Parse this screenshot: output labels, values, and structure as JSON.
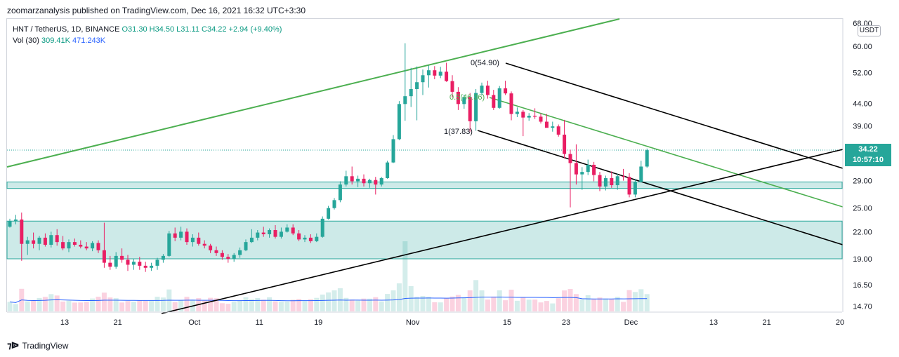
{
  "header": {
    "published": "zoomarzanalysis published on TradingView.com, Dec 16, 2021 16:32 UTC+3:30"
  },
  "legend": {
    "symbol": "HNT / TetherUS, 1D, BINANCE",
    "ohlc": "O31.30  H34.50  L31.11  C34.22  +2.94 (+9.40%)",
    "vol_label": "Vol (30)",
    "vol_value": "309.41K",
    "vol_ma": "471.243K"
  },
  "unit": "USDT",
  "last_price": {
    "price": "34.22",
    "countdown": "10:57:10"
  },
  "footer": {
    "brand": "TradingView"
  },
  "colors": {
    "up": "#26a69a",
    "down": "#e91e63",
    "channel": "#4caf50",
    "trendline": "#000000",
    "zone": "#b2dfdb",
    "vol_ma": "#2962ff"
  },
  "chart_data": {
    "type": "candlestick",
    "symbol": "HNT / TetherUS",
    "interval": "1D",
    "y_scale": "log",
    "y_ticks": [
      "68.00",
      "60.00",
      "52.00",
      "44.00",
      "39.00",
      "34.22",
      "29.00",
      "25.00",
      "22.00",
      "19.00",
      "16.50",
      "14.70"
    ],
    "x_ticks": [
      "13",
      "21",
      "Oct",
      "11",
      "19",
      "Nov",
      "15",
      "23",
      "Dec",
      "13",
      "21",
      "20"
    ],
    "fib_labels": [
      "0(54.90)",
      "0.5(46.36)",
      "1(37.83)"
    ],
    "ohlc": [
      [
        22.6,
        23.6,
        22.5,
        23.3
      ],
      [
        23.3,
        24.1,
        22.9,
        23.5
      ],
      [
        23.5,
        24.4,
        18.8,
        20.6
      ],
      [
        20.6,
        21.4,
        19.4,
        21.0
      ],
      [
        21.0,
        21.9,
        20.1,
        20.6
      ],
      [
        20.6,
        21.5,
        19.9,
        21.3
      ],
      [
        21.3,
        21.8,
        20.3,
        20.5
      ],
      [
        20.5,
        22.0,
        20.2,
        21.6
      ],
      [
        21.6,
        22.3,
        20.4,
        20.8
      ],
      [
        20.8,
        21.5,
        19.9,
        20.1
      ],
      [
        20.1,
        21.1,
        19.7,
        20.8
      ],
      [
        20.8,
        21.2,
        20.3,
        20.5
      ],
      [
        20.5,
        21.0,
        20.1,
        20.3
      ],
      [
        20.3,
        20.8,
        19.9,
        20.1
      ],
      [
        20.1,
        20.9,
        19.8,
        20.7
      ],
      [
        20.7,
        21.0,
        19.6,
        19.9
      ],
      [
        19.9,
        23.1,
        18.1,
        18.6
      ],
      [
        18.6,
        19.3,
        17.9,
        18.2
      ],
      [
        18.2,
        19.7,
        18.0,
        19.3
      ],
      [
        19.3,
        20.1,
        18.6,
        18.9
      ],
      [
        18.9,
        19.4,
        17.8,
        18.4
      ],
      [
        18.4,
        19.0,
        17.9,
        18.7
      ],
      [
        18.7,
        19.2,
        17.9,
        18.3
      ],
      [
        18.3,
        18.7,
        17.7,
        18.1
      ],
      [
        18.1,
        18.6,
        17.8,
        18.3
      ],
      [
        18.3,
        19.1,
        17.9,
        18.9
      ],
      [
        18.9,
        19.5,
        18.6,
        19.3
      ],
      [
        19.3,
        22.1,
        19.2,
        21.8
      ],
      [
        21.8,
        22.5,
        20.9,
        21.3
      ],
      [
        21.3,
        22.6,
        21.0,
        22.0
      ],
      [
        22.0,
        22.4,
        20.5,
        20.8
      ],
      [
        20.8,
        21.7,
        20.3,
        21.3
      ],
      [
        21.3,
        21.9,
        20.4,
        20.6
      ],
      [
        20.6,
        21.0,
        20.1,
        20.4
      ],
      [
        20.4,
        20.6,
        19.6,
        19.9
      ],
      [
        19.9,
        20.3,
        19.3,
        19.6
      ],
      [
        19.6,
        19.9,
        18.9,
        19.2
      ],
      [
        19.2,
        19.5,
        18.6,
        19.0
      ],
      [
        19.0,
        19.6,
        18.7,
        19.4
      ],
      [
        19.4,
        20.2,
        19.1,
        19.9
      ],
      [
        19.9,
        21.1,
        19.8,
        20.8
      ],
      [
        20.8,
        22.3,
        20.7,
        21.3
      ],
      [
        21.3,
        22.2,
        21.0,
        21.9
      ],
      [
        21.9,
        22.6,
        21.4,
        21.7
      ],
      [
        21.7,
        22.4,
        21.3,
        22.2
      ],
      [
        22.2,
        22.8,
        21.2,
        21.4
      ],
      [
        21.4,
        22.5,
        21.2,
        22.0
      ],
      [
        22.0,
        22.9,
        21.9,
        22.5
      ],
      [
        22.5,
        22.9,
        21.6,
        21.8
      ],
      [
        21.8,
        22.2,
        20.9,
        21.1
      ],
      [
        21.1,
        21.6,
        20.8,
        21.3
      ],
      [
        21.3,
        21.7,
        20.7,
        20.9
      ],
      [
        20.9,
        21.8,
        20.8,
        21.4
      ],
      [
        21.4,
        23.9,
        21.3,
        23.6
      ],
      [
        23.6,
        25.3,
        23.5,
        25.0
      ],
      [
        25.0,
        26.4,
        24.8,
        26.1
      ],
      [
        26.1,
        28.9,
        25.8,
        28.4
      ],
      [
        28.4,
        30.6,
        28.1,
        29.7
      ],
      [
        29.7,
        31.3,
        28.4,
        28.9
      ],
      [
        28.9,
        29.8,
        28.0,
        29.3
      ],
      [
        29.3,
        30.0,
        28.1,
        28.6
      ],
      [
        28.6,
        29.3,
        27.9,
        29.1
      ],
      [
        29.1,
        29.6,
        26.9,
        28.4
      ],
      [
        28.4,
        29.6,
        28.1,
        29.4
      ],
      [
        29.4,
        32.3,
        29.3,
        32.0
      ],
      [
        32.0,
        37.1,
        31.9,
        36.3
      ],
      [
        36.3,
        44.6,
        36.1,
        43.9
      ],
      [
        43.9,
        61.0,
        40.1,
        45.8
      ],
      [
        45.8,
        53.4,
        43.2,
        47.6
      ],
      [
        47.6,
        53.8,
        40.2,
        49.4
      ],
      [
        49.4,
        52.9,
        46.1,
        51.3
      ],
      [
        51.3,
        54.1,
        48.0,
        52.7
      ],
      [
        52.7,
        53.9,
        50.2,
        51.2
      ],
      [
        51.2,
        53.7,
        50.5,
        52.3
      ],
      [
        52.3,
        54.9,
        49.5,
        49.7
      ],
      [
        49.7,
        51.3,
        45.5,
        46.9
      ],
      [
        46.9,
        48.1,
        42.5,
        43.9
      ],
      [
        43.9,
        46.2,
        42.8,
        45.6
      ],
      [
        45.6,
        46.6,
        37.8,
        40.0
      ],
      [
        40.0,
        47.6,
        38.0,
        46.6
      ],
      [
        46.6,
        49.3,
        46.0,
        48.5
      ],
      [
        48.5,
        49.8,
        45.2,
        46.1
      ],
      [
        46.1,
        47.4,
        42.5,
        43.0
      ],
      [
        43.0,
        48.4,
        42.8,
        47.8
      ],
      [
        47.8,
        49.8,
        46.1,
        46.5
      ],
      [
        46.5,
        47.0,
        40.2,
        41.6
      ],
      [
        41.6,
        43.1,
        40.9,
        42.1
      ],
      [
        42.1,
        42.5,
        36.9,
        40.8
      ],
      [
        40.8,
        41.8,
        40.1,
        41.2
      ],
      [
        41.2,
        42.9,
        40.5,
        41.0
      ],
      [
        41.0,
        41.7,
        39.5,
        39.9
      ],
      [
        39.9,
        41.6,
        38.7,
        38.6
      ],
      [
        38.6,
        39.9,
        37.8,
        38.9
      ],
      [
        38.9,
        39.3,
        36.8,
        37.2
      ],
      [
        37.2,
        40.3,
        32.7,
        33.5
      ],
      [
        33.5,
        34.3,
        25.1,
        31.9
      ],
      [
        31.9,
        35.3,
        28.4,
        30.0
      ],
      [
        30.0,
        31.2,
        27.6,
        30.4
      ],
      [
        30.4,
        32.5,
        29.9,
        31.6
      ],
      [
        31.6,
        32.1,
        28.9,
        29.9
      ],
      [
        29.9,
        30.4,
        27.4,
        28.1
      ],
      [
        28.1,
        29.8,
        27.5,
        29.4
      ],
      [
        29.4,
        30.5,
        27.9,
        28.3
      ],
      [
        28.3,
        30.1,
        27.6,
        29.7
      ],
      [
        29.7,
        30.9,
        29.0,
        29.6
      ],
      [
        29.6,
        30.2,
        26.5,
        26.9
      ],
      [
        26.9,
        29.3,
        26.5,
        28.8
      ],
      [
        28.8,
        32.3,
        28.7,
        31.3
      ],
      [
        31.3,
        34.5,
        31.1,
        34.2
      ]
    ],
    "volume_ma_line": true,
    "horizontal_zones": [
      [
        27.8,
        28.8
      ],
      [
        19.0,
        23.3
      ]
    ]
  }
}
